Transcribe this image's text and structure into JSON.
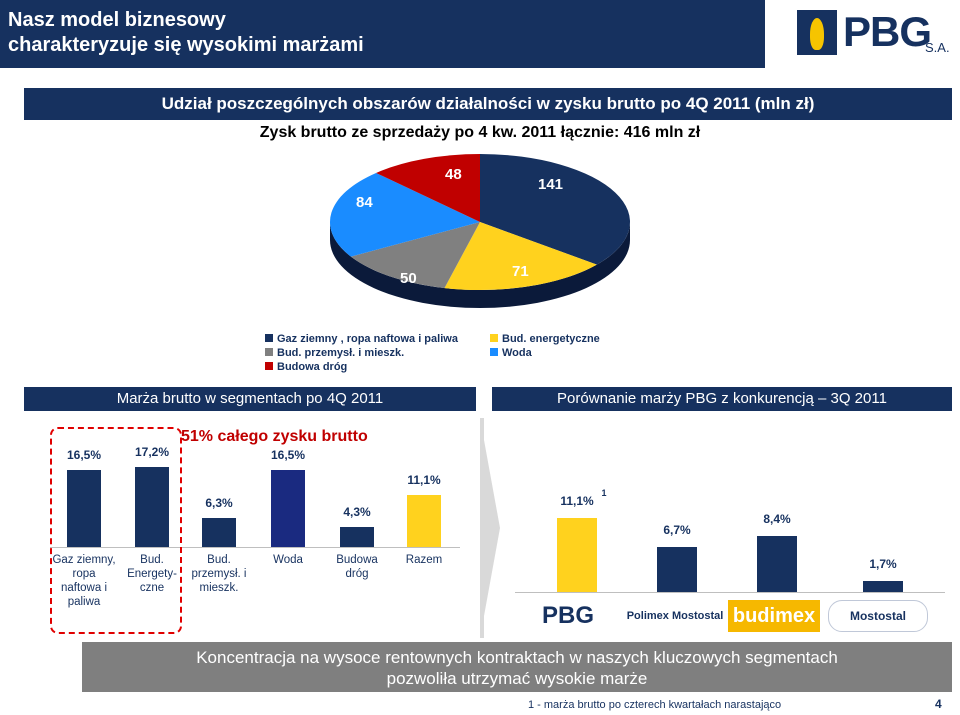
{
  "header": {
    "title_line1": "Nasz model biznesowy",
    "title_line2": "charakteryzuje się wysokimi marżami"
  },
  "logo": {
    "text": "PBG",
    "suffix": "S.A."
  },
  "top_banner": "Udział poszczególnych obszarów działalności w zysku brutto po 4Q 2011 (mln zł)",
  "pie_subtitle": "Zysk brutto ze sprzedaży po 4 kw. 2011 łącznie: 416 mln zł",
  "pie_values": [
    "141",
    "71",
    "50",
    "84",
    "48"
  ],
  "legend": [
    {
      "label": "Gaz ziemny , ropa naftowa i paliwa",
      "color": "#16315f"
    },
    {
      "label": "Bud. energetyczne",
      "color": "#ffd21e"
    },
    {
      "label": "Bud. przemysł. i mieszk.",
      "color": "#808080"
    },
    {
      "label": "Woda",
      "color": "#1a8cff"
    },
    {
      "label": "Budowa dróg",
      "color": "#c00000"
    }
  ],
  "left_heading": "Marża brutto w segmentach po 4Q 2011",
  "right_heading": "Porównanie marży PBG z konkurencją – 3Q 2011",
  "red_note": "51% całego zysku brutto",
  "left_bars": {
    "labels": [
      "16,5%",
      "17,2%",
      "6,3%",
      "16,5%",
      "4,3%",
      "11,1%"
    ],
    "categories": [
      "Gaz ziemny,\nropa\nnaftowa i\npaliwa",
      "Bud.\nEnergety-\nczne",
      "Bud.\nprzemysł. i\nmieszk.",
      "Woda",
      "Budowa\ndróg",
      "Razem"
    ],
    "colors": [
      "#16315f",
      "#16315f",
      "#16315f",
      "#1a2a80",
      "#16315f",
      "#ffd21e"
    ]
  },
  "right_bars": {
    "labels": [
      "11,1%",
      "6,7%",
      "8,4%",
      "1,7%"
    ],
    "footnote_mark": "1",
    "companies": [
      "PBG",
      "Polimex Mostostal",
      "budimex",
      "Mostostal"
    ]
  },
  "bottom_banner": {
    "line1": "Koncentracja na wysoce rentownych kontraktach w naszych kluczowych segmentach",
    "line2": "pozwoliła utrzymać wysokie marże"
  },
  "footnote": "1 - marża brutto po czterech kwartałach narastająco",
  "page_number": "4",
  "chart_data": [
    {
      "type": "pie",
      "title": "Zysk brutto ze sprzedaży po 4 kw. 2011 łącznie: 416 mln zł",
      "categories": [
        "Gaz ziemny , ropa naftowa i paliwa",
        "Bud. energetyczne",
        "Bud. przemysł. i mieszk.",
        "Woda",
        "Budowa dróg"
      ],
      "values": [
        141,
        71,
        50,
        84,
        48
      ]
    },
    {
      "type": "bar",
      "title": "Marża brutto w segmentach po 4Q 2011",
      "categories": [
        "Gaz ziemny, ropa naftowa i paliwa",
        "Bud. Energetyczne",
        "Bud. przemysł. i mieszk.",
        "Woda",
        "Budowa dróg",
        "Razem"
      ],
      "values": [
        16.5,
        17.2,
        6.3,
        16.5,
        4.3,
        11.1
      ]
    },
    {
      "type": "bar",
      "title": "Porównanie marży PBG z konkurencją – 3Q 2011",
      "categories": [
        "PBG",
        "Polimex Mostostal",
        "Budimex",
        "Mostostal"
      ],
      "values": [
        11.1,
        6.7,
        8.4,
        1.7
      ]
    }
  ]
}
